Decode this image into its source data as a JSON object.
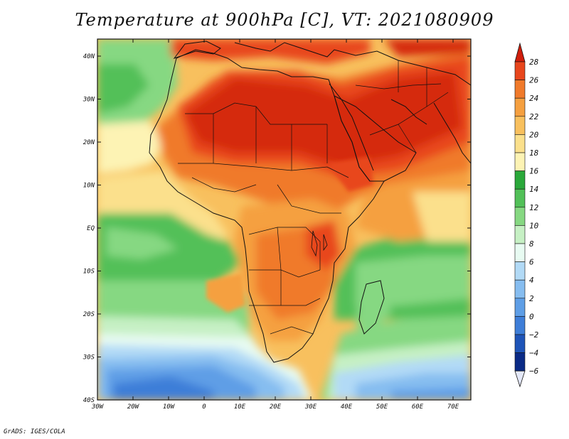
{
  "title": "Temperature at 900hPa [C], VT: 2021080909",
  "credit": "GrADS: IGES/COLA",
  "map": {
    "variable": "Temperature",
    "level": "900hPa",
    "units": "C",
    "lat_labels": [
      "40N",
      "30N",
      "20N",
      "10N",
      "EQ",
      "10S",
      "20S",
      "30S",
      "40S"
    ],
    "lon_labels": [
      "30W",
      "20W",
      "10W",
      "0",
      "10E",
      "20E",
      "30E",
      "40E",
      "50E",
      "60E",
      "70E"
    ]
  },
  "colorbar": {
    "labels": [
      "28",
      "26",
      "24",
      "22",
      "20",
      "18",
      "16",
      "14",
      "12",
      "10",
      "8",
      "6",
      "4",
      "2",
      "0",
      "−2",
      "−4",
      "−6"
    ],
    "colors": [
      "#d52a10",
      "#e8461c",
      "#f07a2a",
      "#f5a040",
      "#f8c05e",
      "#fbe08c",
      "#fdf3b4",
      "#2aa83a",
      "#52c058",
      "#86d882",
      "#c6f0c4",
      "#e8fbf2",
      "#b2daf6",
      "#86bdf0",
      "#5e9ee6",
      "#3e7ed8",
      "#1e54b8",
      "#0a2a86",
      "#081a5a"
    ],
    "top_color": "#d01e0c",
    "bottom_color": "#e4e8f8"
  }
}
